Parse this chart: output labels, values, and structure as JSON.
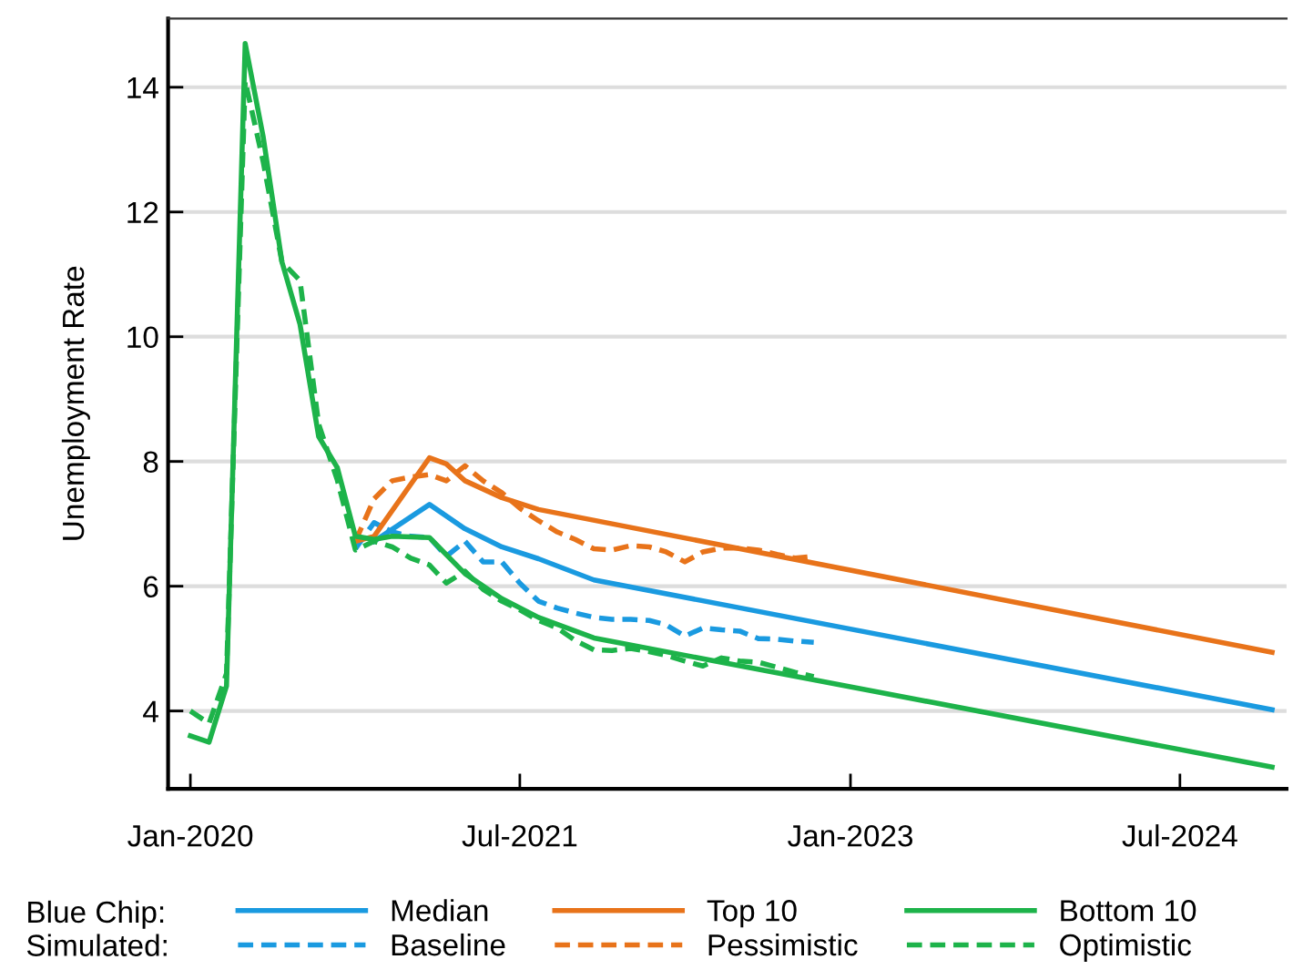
{
  "chart_data": {
    "type": "line",
    "ylabel": "Unemployment Rate",
    "xlim": [
      "2019-11-25",
      "2024-12-25"
    ],
    "ylim": [
      2.75,
      15.1
    ],
    "xticks": [
      {
        "value": "2020-01-01",
        "label": "Jan-2020"
      },
      {
        "value": "2021-07-01",
        "label": "Jul-2021"
      },
      {
        "value": "2023-01-01",
        "label": "Jan-2023"
      },
      {
        "value": "2024-07-01",
        "label": "Jul-2024"
      }
    ],
    "yticks": [
      4,
      6,
      8,
      10,
      12,
      14
    ],
    "grid": "y",
    "legend": "bottom",
    "marker": "none",
    "annotations": [
      "Blue Chip:",
      "Simulated:"
    ],
    "series": [
      {
        "name": "Median",
        "color": "#1a9ae0",
        "line_style": "solid",
        "x": [
          "2020-11",
          "2021-02",
          "2021-04",
          "2021-06",
          "2021-08",
          "2021-11",
          "2024-12"
        ],
        "values": [
          6.72,
          7.31,
          6.92,
          6.63,
          6.44,
          6.1,
          4.02
        ]
      },
      {
        "name": "Baseline",
        "color": "#1a9ae0",
        "line_style": "dashed",
        "x": [
          "2020-10",
          "2020-11",
          "2020-12",
          "2021-01",
          "2021-02",
          "2021-03",
          "2021-04",
          "2021-05",
          "2021-06",
          "2021-07",
          "2021-08",
          "2021-09",
          "2021-10",
          "2021-11",
          "2021-12",
          "2022-01",
          "2022-02",
          "2022-03",
          "2022-04",
          "2022-05",
          "2022-06",
          "2022-07",
          "2022-08",
          "2022-09",
          "2022-10",
          "2022-11"
        ],
        "values": [
          6.6,
          7.02,
          6.87,
          6.8,
          6.78,
          6.48,
          6.72,
          6.39,
          6.39,
          6.05,
          5.76,
          5.65,
          5.57,
          5.5,
          5.47,
          5.47,
          5.45,
          5.38,
          5.2,
          5.33,
          5.3,
          5.28,
          5.16,
          5.15,
          5.12,
          5.1
        ]
      },
      {
        "name": "Top 10",
        "color": "#e8731a",
        "line_style": "solid",
        "x": [
          "2020-10",
          "2020-11",
          "2021-02",
          "2021-03",
          "2021-04",
          "2021-06",
          "2021-08",
          "2024-12"
        ],
        "values": [
          6.72,
          6.8,
          8.06,
          7.96,
          7.69,
          7.42,
          7.23,
          4.94
        ]
      },
      {
        "name": "Pessimistic",
        "color": "#e8731a",
        "line_style": "dashed",
        "x": [
          "2020-10",
          "2020-11",
          "2020-12",
          "2021-01",
          "2021-02",
          "2021-03",
          "2021-04",
          "2021-05",
          "2021-06",
          "2021-07",
          "2021-08",
          "2021-09",
          "2021-10",
          "2021-11",
          "2021-12",
          "2022-01",
          "2022-02",
          "2022-03",
          "2022-04",
          "2022-05",
          "2022-06",
          "2022-07",
          "2022-08",
          "2022-09",
          "2022-10",
          "2022-11"
        ],
        "values": [
          6.72,
          7.4,
          7.69,
          7.75,
          7.79,
          7.69,
          7.93,
          7.69,
          7.5,
          7.25,
          7.05,
          6.87,
          6.75,
          6.6,
          6.58,
          6.65,
          6.63,
          6.55,
          6.39,
          6.55,
          6.61,
          6.61,
          6.58,
          6.51,
          6.45,
          6.48
        ]
      },
      {
        "name": "Bottom 10",
        "color": "#1db34a",
        "line_style": "solid",
        "x": [
          "2020-01",
          "2020-02",
          "2020-03",
          "2020-04",
          "2020-05",
          "2020-06",
          "2020-07",
          "2020-08",
          "2020-09",
          "2020-10",
          "2020-11",
          "2020-12",
          "2021-02",
          "2021-04",
          "2021-06",
          "2021-08",
          "2021-11",
          "2024-12"
        ],
        "values": [
          3.6,
          3.5,
          4.4,
          14.7,
          13.2,
          11.2,
          10.2,
          8.4,
          7.9,
          6.8,
          6.75,
          6.8,
          6.78,
          6.2,
          5.8,
          5.5,
          5.17,
          3.1
        ]
      },
      {
        "name": "Optimistic",
        "color": "#1db34a",
        "line_style": "dashed",
        "x": [
          "2020-01",
          "2020-02",
          "2020-03",
          "2020-04",
          "2020-05",
          "2020-06",
          "2020-07",
          "2020-08",
          "2020-09",
          "2020-10",
          "2020-11",
          "2020-12",
          "2021-01",
          "2021-02",
          "2021-03",
          "2021-04",
          "2021-05",
          "2021-06",
          "2021-07",
          "2021-08",
          "2021-09",
          "2021-10",
          "2021-11",
          "2021-12",
          "2022-01",
          "2022-02",
          "2022-03",
          "2022-04",
          "2022-05",
          "2022-06",
          "2022-07",
          "2022-08",
          "2022-09",
          "2022-10",
          "2022-11"
        ],
        "values": [
          4.0,
          3.8,
          4.6,
          14.1,
          12.8,
          11.2,
          10.9,
          8.6,
          7.7,
          6.58,
          6.72,
          6.63,
          6.45,
          6.34,
          6.05,
          6.24,
          5.95,
          5.76,
          5.62,
          5.45,
          5.33,
          5.13,
          4.98,
          4.97,
          5.0,
          4.95,
          4.89,
          4.8,
          4.72,
          4.85,
          4.8,
          4.78,
          4.7,
          4.62,
          4.55
        ]
      }
    ]
  }
}
